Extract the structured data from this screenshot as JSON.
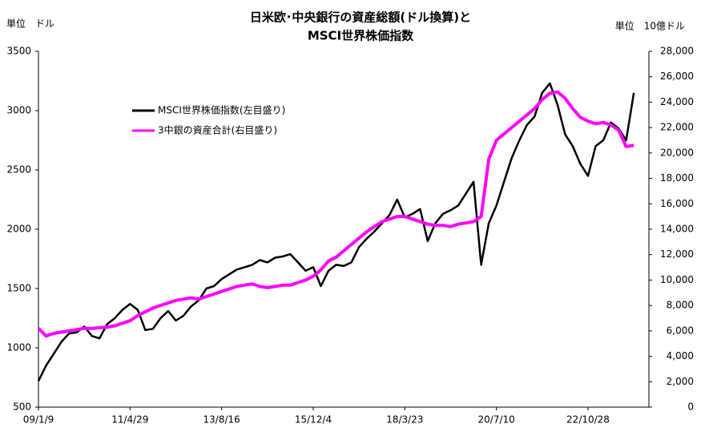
{
  "chart_data": {
    "type": "line",
    "title": [
      "日米欧･中央銀行の資産総額(ドル換算)と",
      "MSCI世界株価指数"
    ],
    "y_label": "単位　ドル",
    "y2_label": "単位　10億ドル",
    "categories": [
      "09/1/9",
      null,
      null,
      null,
      null,
      null,
      null,
      null,
      null,
      null,
      null,
      null,
      "11/4/29",
      null,
      null,
      null,
      null,
      null,
      null,
      null,
      null,
      null,
      null,
      null,
      "13/8/16",
      null,
      null,
      null,
      null,
      null,
      null,
      null,
      null,
      null,
      null,
      null,
      "15/12/4",
      null,
      null,
      null,
      null,
      null,
      null,
      null,
      null,
      null,
      null,
      null,
      "18/3/23",
      null,
      null,
      null,
      null,
      null,
      null,
      null,
      null,
      null,
      null,
      null,
      "20/7/10",
      null,
      null,
      null,
      null,
      null,
      null,
      null,
      null,
      null,
      null,
      null,
      "22/10/28",
      null,
      null,
      null,
      null,
      null,
      null
    ],
    "series": [
      {
        "name": "MSCI世界株価指数(左目盛り)",
        "color": "#000000",
        "axis": "y",
        "values": [
          720,
          850,
          950,
          1050,
          1120,
          1130,
          1180,
          1100,
          1080,
          1200,
          1250,
          1320,
          1370,
          1320,
          1150,
          1160,
          1250,
          1310,
          1230,
          1270,
          1350,
          1400,
          1500,
          1520,
          1580,
          1620,
          1660,
          1680,
          1700,
          1740,
          1720,
          1760,
          1770,
          1790,
          1720,
          1650,
          1680,
          1520,
          1650,
          1700,
          1690,
          1720,
          1850,
          1920,
          1980,
          2050,
          2120,
          2250,
          2100,
          2130,
          2170,
          1900,
          2050,
          2130,
          2160,
          2200,
          2300,
          2400,
          1700,
          2050,
          2200,
          2400,
          2600,
          2750,
          2880,
          2950,
          3150,
          3230,
          3050,
          2800,
          2700,
          2550,
          2450,
          2700,
          2750,
          2900,
          2850,
          2750,
          3150
        ]
      },
      {
        "name": "3中銀の資産合計(右目盛り)",
        "color": "#ff00ff",
        "axis": "y2",
        "values": [
          6200,
          5600,
          5800,
          5900,
          6000,
          6100,
          6200,
          6200,
          6250,
          6300,
          6400,
          6600,
          6800,
          7200,
          7500,
          7800,
          8000,
          8200,
          8400,
          8500,
          8600,
          8500,
          8700,
          8900,
          9100,
          9300,
          9500,
          9600,
          9700,
          9500,
          9400,
          9500,
          9600,
          9600,
          9800,
          10000,
          10300,
          10800,
          11500,
          11800,
          12300,
          12800,
          13300,
          13800,
          14200,
          14600,
          14800,
          15000,
          15000,
          14800,
          14600,
          14400,
          14300,
          14300,
          14200,
          14400,
          14500,
          14600,
          15000,
          19500,
          21000,
          21500,
          22000,
          22500,
          23000,
          23500,
          24200,
          24700,
          24800,
          24300,
          23500,
          22800,
          22500,
          22300,
          22400,
          22200,
          21800,
          20500,
          20600
        ]
      }
    ],
    "ylim": [
      500,
      3500
    ],
    "yticks": [
      500,
      1000,
      1500,
      2000,
      2500,
      3000,
      3500
    ],
    "y2lim": [
      0,
      28000
    ],
    "y2ticks": [
      0,
      {
        "value": 2000,
        "label": "2,000"
      },
      {
        "value": 4000,
        "label": "4,000"
      },
      {
        "value": 6000,
        "label": "6,000"
      },
      {
        "value": 8000,
        "label": "8,000"
      },
      {
        "value": 10000,
        "label": "10,000"
      },
      {
        "value": 12000,
        "label": "12,000"
      },
      {
        "value": 14000,
        "label": "14,000"
      },
      {
        "value": 16000,
        "label": "16,000"
      },
      {
        "value": 18000,
        "label": "18,000"
      },
      {
        "value": 20000,
        "label": "20,000"
      },
      {
        "value": 22000,
        "label": "22,000"
      },
      {
        "value": 24000,
        "label": "24,000"
      },
      {
        "value": 26000,
        "label": "26,000"
      },
      {
        "value": 28000,
        "label": "28,000"
      }
    ],
    "y2_color": "#ff0000",
    "legend": "upper-left"
  }
}
